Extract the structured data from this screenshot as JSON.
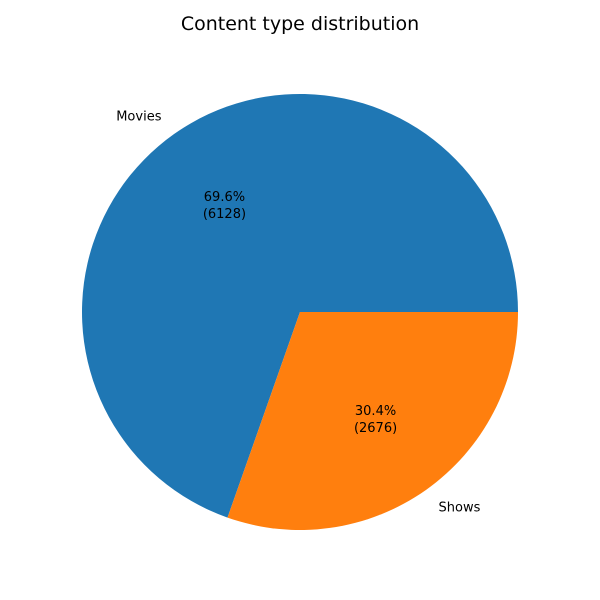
{
  "chart_data": {
    "type": "pie",
    "title": "Content type distribution",
    "categories": [
      "Movies",
      "Shows"
    ],
    "values": [
      6128,
      2676
    ],
    "percent_labels": [
      "69.6%",
      "30.4%"
    ],
    "count_labels": [
      "(6128)",
      "(2676)"
    ],
    "colors": [
      "#1f77b4",
      "#ff7f0e"
    ],
    "start_angle": 0,
    "direction": "counterclockwise"
  }
}
